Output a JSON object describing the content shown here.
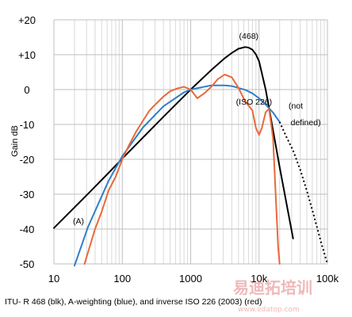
{
  "chart_data": {
    "type": "line",
    "xscale": "log",
    "xlim": [
      10,
      100000
    ],
    "ylim": [
      -50,
      20
    ],
    "grid": true,
    "ylabel": "Gain dB",
    "xlabel": "",
    "title": "",
    "y_ticks": [
      "+20",
      "+10",
      "0",
      "-10",
      "-20",
      "-30",
      "-40",
      "-50"
    ],
    "y_tick_values": [
      20,
      10,
      0,
      -10,
      -20,
      -30,
      -40,
      -50
    ],
    "x_ticks": [
      "10",
      "100",
      "1000",
      "10k",
      "100k"
    ],
    "x_tick_values": [
      10,
      100,
      1000,
      10000,
      100000
    ],
    "series": [
      {
        "name": "(468)",
        "color": "#000000",
        "dashed": false,
        "x": [
          10,
          31.5,
          63,
          100,
          200,
          400,
          800,
          1000,
          2000,
          3150,
          4000,
          5000,
          6300,
          7100,
          8000,
          9000,
          10000,
          12500,
          14000,
          16000,
          20000,
          31500
        ],
        "y": [
          -39.7,
          -29.9,
          -23.9,
          -19.8,
          -13.8,
          -7.8,
          -1.9,
          0,
          5.6,
          9.0,
          10.5,
          11.7,
          12.2,
          12.0,
          11.4,
          10.1,
          8.1,
          0,
          -5.3,
          -11.7,
          -22.2,
          -42.7
        ]
      },
      {
        "name": "A-weighting",
        "color": "#2e7fc9",
        "dashed": false,
        "x": [
          20,
          31.5,
          63,
          100,
          200,
          400,
          800,
          1000,
          2000,
          3150,
          4000,
          6300,
          8000,
          10000,
          12500,
          16000,
          20000
        ],
        "y": [
          -50.5,
          -39.4,
          -26.2,
          -19.1,
          -10.9,
          -4.8,
          -0.8,
          0,
          1.2,
          1.2,
          1.0,
          -0.1,
          -1.1,
          -2.5,
          -4.3,
          -6.6,
          -9.3
        ]
      },
      {
        "name": "(not defined)",
        "color": "#000000",
        "dashed": true,
        "x": [
          20000,
          25000,
          31500,
          40000,
          50000,
          63000,
          80000,
          100000
        ],
        "y": [
          -9.3,
          -13.5,
          -17.5,
          -23.0,
          -29.0,
          -36.0,
          -43.5,
          -50.0
        ]
      },
      {
        "name": "(ISO 226)",
        "color": "#e8693a",
        "dashed": false,
        "x": [
          28,
          40,
          50,
          63,
          80,
          100,
          125,
          160,
          200,
          250,
          315,
          400,
          500,
          630,
          800,
          1000,
          1250,
          1600,
          2000,
          2500,
          3150,
          4000,
          5000,
          6300,
          8000,
          9000,
          10000,
          11000,
          12500,
          14000,
          16000,
          17500,
          19000,
          20000
        ],
        "y": [
          -50,
          -40,
          -35,
          -29,
          -25,
          -20,
          -16,
          -12,
          -9,
          -6,
          -4,
          -2,
          -0.5,
          0.3,
          0.8,
          0,
          -2.5,
          -1,
          0.8,
          3,
          4.3,
          3.5,
          0.5,
          -3.5,
          -6,
          -11,
          -13,
          -11,
          -6.5,
          -5.5,
          -14,
          -30,
          -45,
          -50
        ]
      }
    ],
    "annotations": [
      {
        "text": "(468)",
        "x": 5100,
        "y": 14.5
      },
      {
        "text": "(ISO 226)",
        "x": 4600,
        "y": -4.3
      },
      {
        "text": "(A)",
        "x": 19,
        "y": -38.5
      },
      {
        "text": "(not",
        "x": 27000,
        "y": -5.5
      },
      {
        "text": "defined)",
        "x": 29000,
        "y": -10.2
      }
    ],
    "caption": "ITU- R 468 (blk), A-weighting (blue), and inverse ISO 226 (2003) (red)"
  },
  "watermark": {
    "text": "易迪拓培训",
    "sub": "www.edatop.com"
  }
}
